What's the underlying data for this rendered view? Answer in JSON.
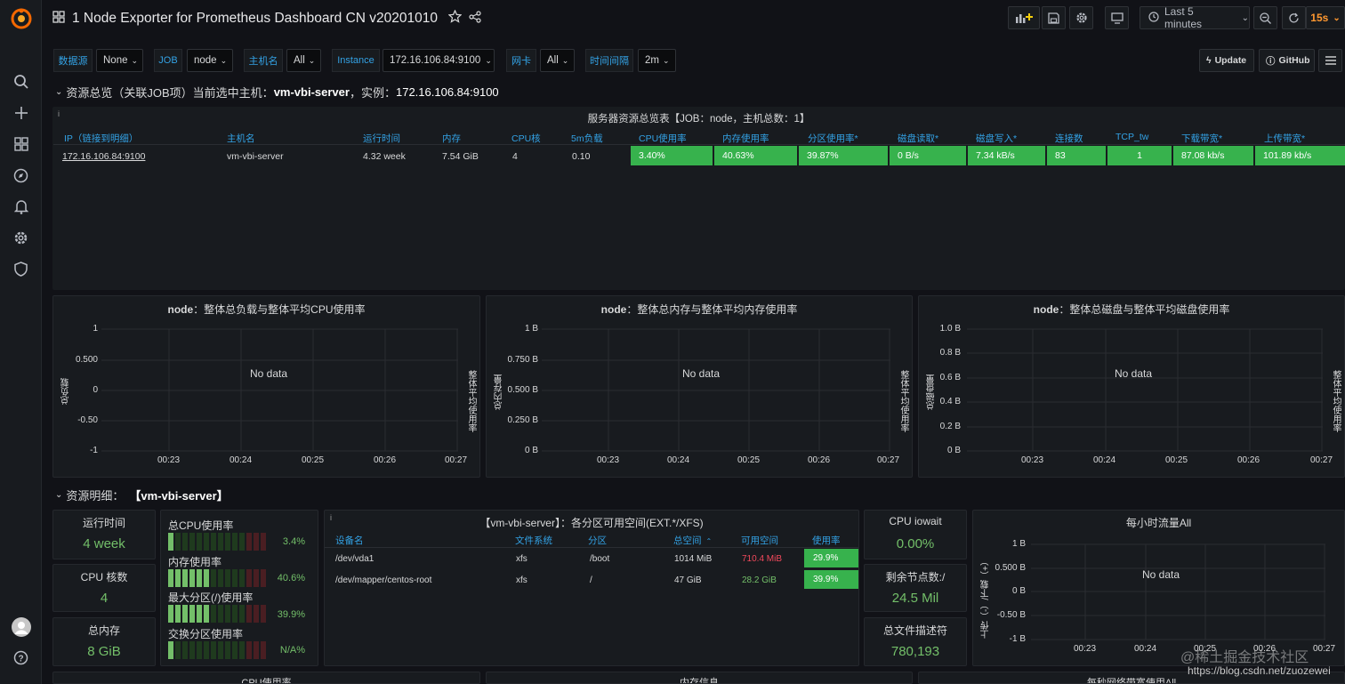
{
  "dashboard": {
    "title": "1 Node Exporter for Prometheus Dashboard CN v20201010"
  },
  "toolbar": {
    "time_range": "Last 5 minutes",
    "refresh": "15s"
  },
  "variables": [
    {
      "label": "数据源",
      "value": "None"
    },
    {
      "label": "JOB",
      "value": "node"
    },
    {
      "label": "主机名",
      "value": "All"
    },
    {
      "label": "Instance",
      "value": "172.16.106.84:9100"
    },
    {
      "label": "网卡",
      "value": "All"
    },
    {
      "label": "时间间隔",
      "value": "2m"
    }
  ],
  "links": {
    "update": "Update",
    "github": "GitHub"
  },
  "row1": {
    "title": "资源总览（关联JOB项）当前选中主机：",
    "host": "vm-vbi-server",
    "sep": "，实例：",
    "instance": "172.16.106.84:9100"
  },
  "overview": {
    "title": "服务器资源总览表【JOB：node，主机总数：1】",
    "headers": [
      "IP（链接到明细）",
      "主机名",
      "运行时间",
      "内存",
      "CPU核",
      "5m负载",
      "CPU使用率",
      "内存使用率",
      "分区使用率*",
      "磁盘读取*",
      "磁盘写入*",
      "连接数",
      "TCP_tw",
      "下载带宽*",
      "上传带宽*"
    ],
    "row": [
      "172.16.106.84:9100",
      "vm-vbi-server",
      "4.32 week",
      "7.54 GiB",
      "4",
      "0.10",
      "3.40%",
      "40.63%",
      "39.87%",
      "0 B/s",
      "7.34 kB/s",
      "83",
      "1",
      "87.08 kb/s",
      "101.89 kb/s"
    ]
  },
  "graphs": [
    {
      "title_node": "node",
      "title_rest": "：整体总负载与整体平均CPU使用率",
      "yticks": [
        "1",
        "0.500",
        "0",
        "-0.50",
        "-1"
      ],
      "ylabel": "总负载",
      "ylabel_right": "整体平均使用率",
      "no_data": "No data",
      "xticks": [
        "00:23",
        "00:24",
        "00:25",
        "00:26",
        "00:27"
      ]
    },
    {
      "title_node": "node",
      "title_rest": "：整体总内存与整体平均内存使用率",
      "yticks": [
        "1 B",
        "0.750 B",
        "0.500 B",
        "0.250 B",
        "0 B"
      ],
      "ylabel": "总内存量",
      "ylabel_right": "整体平均使用率",
      "no_data": "No data",
      "xticks": [
        "00:23",
        "00:24",
        "00:25",
        "00:26",
        "00:27"
      ]
    },
    {
      "title_node": "node",
      "title_rest": "：整体总磁盘与整体平均磁盘使用率",
      "yticks": [
        "1.0 B",
        "0.8 B",
        "0.6 B",
        "0.4 B",
        "0.2 B",
        "0 B"
      ],
      "ylabel": "总磁盘量",
      "ylabel_right": "整体平均使用率",
      "no_data": "No data",
      "xticks": [
        "00:23",
        "00:24",
        "00:25",
        "00:26",
        "00:27"
      ]
    }
  ],
  "row2": {
    "title": "资源明细：",
    "host": "【vm-vbi-server】"
  },
  "stats": {
    "uptime": {
      "title": "运行时间",
      "value": "4 week"
    },
    "cpu_cores": {
      "title": "CPU 核数",
      "value": "4"
    },
    "mem_total": {
      "title": "总内存",
      "value": "8 GiB"
    },
    "iowait": {
      "title": "CPU iowait",
      "value": "0.00%"
    },
    "inodes": {
      "title": "剩余节点数:/",
      "value": "24.5 Mil"
    },
    "fds": {
      "title": "总文件描述符",
      "value": "780,193"
    }
  },
  "bargauges": [
    {
      "label": "总CPU使用率",
      "value": "3.4%",
      "fraction": 0.034
    },
    {
      "label": "内存使用率",
      "value": "40.6%",
      "fraction": 0.406
    },
    {
      "label": "最大分区(/)使用率",
      "value": "39.9%",
      "fraction": 0.399
    },
    {
      "label": "交换分区使用率",
      "value": "N/A%",
      "fraction": 0
    }
  ],
  "disk": {
    "title": "【vm-vbi-server】：各分区可用空间(EXT.*/XFS)",
    "headers": [
      "设备名",
      "文件系统",
      "分区",
      "总空间",
      "可用空间",
      "使用率"
    ],
    "rows": [
      [
        "/dev/vda1",
        "xfs",
        "/boot",
        "1014 MiB",
        "710.4 MiB",
        "29.9%"
      ],
      [
        "/dev/mapper/centos-root",
        "xfs",
        "/",
        "47 GiB",
        "28.2 GiB",
        "39.9%"
      ]
    ]
  },
  "traffic": {
    "title": "每小时流量All",
    "yticks": [
      "1 B",
      "0.500 B",
      "0 B",
      "-0.50 B",
      "-1 B"
    ],
    "ylabel": "上传（-）/下载（+）",
    "no_data": "No data",
    "xticks": [
      "00:23",
      "00:24",
      "00:25",
      "00:26",
      "00:27"
    ]
  },
  "bottom": {
    "p1": "CPU使用率",
    "p2": "内存信息",
    "p3": "每秒网络带宽使用All"
  },
  "watermark": {
    "line1": "@稀土掘金技术社区",
    "line2": "https://blog.csdn.net/zuozewei"
  },
  "colors": {
    "green": "#37b24d",
    "blue": "#33a2e5",
    "panel": "#181b1f",
    "bg": "#111217",
    "red": "#f2495c"
  }
}
